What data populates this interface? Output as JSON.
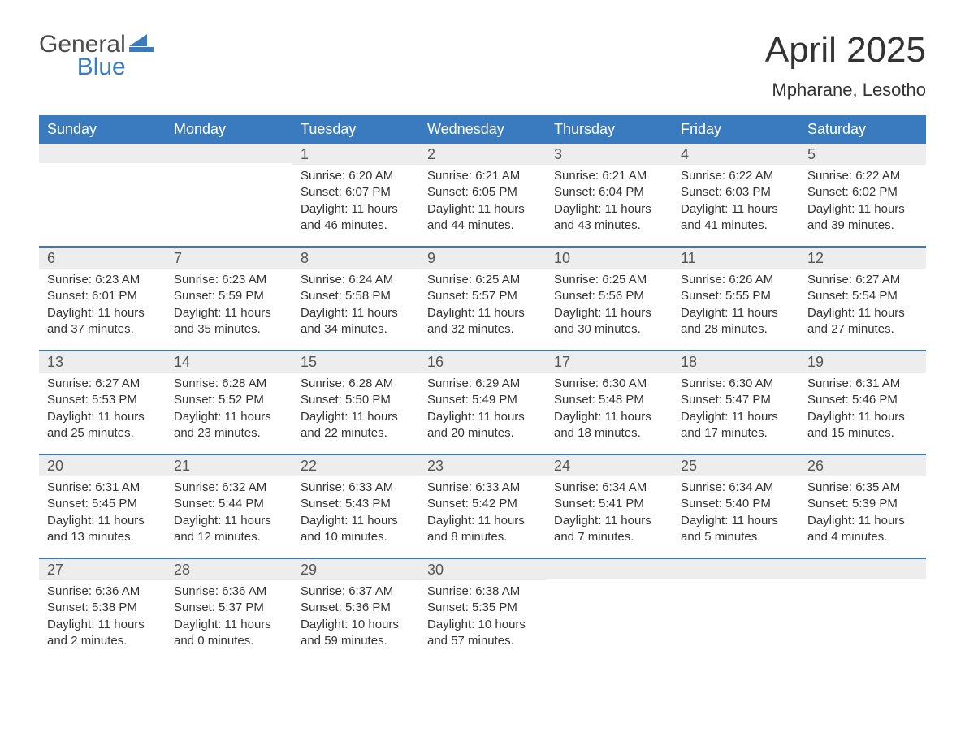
{
  "brand": {
    "text_top": "General",
    "text_bottom": "Blue",
    "mark_color": "#3a7bbf",
    "text_top_color": "#4c4c4c",
    "text_bottom_color": "#3a7bbf"
  },
  "title": "April 2025",
  "location": "Mpharane, Lesotho",
  "colors": {
    "header_bg": "#3a7bbf",
    "header_fg": "#ffffff",
    "daynum_bg": "#ededed",
    "daynum_fg": "#555555",
    "body_fg": "#333333",
    "week_border": "#3a7bbf",
    "page_bg": "#ffffff"
  },
  "typography": {
    "title_fontsize": 44,
    "location_fontsize": 22,
    "header_fontsize": 18,
    "daynum_fontsize": 18,
    "body_fontsize": 15
  },
  "day_names": [
    "Sunday",
    "Monday",
    "Tuesday",
    "Wednesday",
    "Thursday",
    "Friday",
    "Saturday"
  ],
  "weeks": [
    [
      {
        "n": "",
        "sunrise": "",
        "sunset": "",
        "day1": "",
        "day2": ""
      },
      {
        "n": "",
        "sunrise": "",
        "sunset": "",
        "day1": "",
        "day2": ""
      },
      {
        "n": "1",
        "sunrise": "Sunrise: 6:20 AM",
        "sunset": "Sunset: 6:07 PM",
        "day1": "Daylight: 11 hours",
        "day2": "and 46 minutes."
      },
      {
        "n": "2",
        "sunrise": "Sunrise: 6:21 AM",
        "sunset": "Sunset: 6:05 PM",
        "day1": "Daylight: 11 hours",
        "day2": "and 44 minutes."
      },
      {
        "n": "3",
        "sunrise": "Sunrise: 6:21 AM",
        "sunset": "Sunset: 6:04 PM",
        "day1": "Daylight: 11 hours",
        "day2": "and 43 minutes."
      },
      {
        "n": "4",
        "sunrise": "Sunrise: 6:22 AM",
        "sunset": "Sunset: 6:03 PM",
        "day1": "Daylight: 11 hours",
        "day2": "and 41 minutes."
      },
      {
        "n": "5",
        "sunrise": "Sunrise: 6:22 AM",
        "sunset": "Sunset: 6:02 PM",
        "day1": "Daylight: 11 hours",
        "day2": "and 39 minutes."
      }
    ],
    [
      {
        "n": "6",
        "sunrise": "Sunrise: 6:23 AM",
        "sunset": "Sunset: 6:01 PM",
        "day1": "Daylight: 11 hours",
        "day2": "and 37 minutes."
      },
      {
        "n": "7",
        "sunrise": "Sunrise: 6:23 AM",
        "sunset": "Sunset: 5:59 PM",
        "day1": "Daylight: 11 hours",
        "day2": "and 35 minutes."
      },
      {
        "n": "8",
        "sunrise": "Sunrise: 6:24 AM",
        "sunset": "Sunset: 5:58 PM",
        "day1": "Daylight: 11 hours",
        "day2": "and 34 minutes."
      },
      {
        "n": "9",
        "sunrise": "Sunrise: 6:25 AM",
        "sunset": "Sunset: 5:57 PM",
        "day1": "Daylight: 11 hours",
        "day2": "and 32 minutes."
      },
      {
        "n": "10",
        "sunrise": "Sunrise: 6:25 AM",
        "sunset": "Sunset: 5:56 PM",
        "day1": "Daylight: 11 hours",
        "day2": "and 30 minutes."
      },
      {
        "n": "11",
        "sunrise": "Sunrise: 6:26 AM",
        "sunset": "Sunset: 5:55 PM",
        "day1": "Daylight: 11 hours",
        "day2": "and 28 minutes."
      },
      {
        "n": "12",
        "sunrise": "Sunrise: 6:27 AM",
        "sunset": "Sunset: 5:54 PM",
        "day1": "Daylight: 11 hours",
        "day2": "and 27 minutes."
      }
    ],
    [
      {
        "n": "13",
        "sunrise": "Sunrise: 6:27 AM",
        "sunset": "Sunset: 5:53 PM",
        "day1": "Daylight: 11 hours",
        "day2": "and 25 minutes."
      },
      {
        "n": "14",
        "sunrise": "Sunrise: 6:28 AM",
        "sunset": "Sunset: 5:52 PM",
        "day1": "Daylight: 11 hours",
        "day2": "and 23 minutes."
      },
      {
        "n": "15",
        "sunrise": "Sunrise: 6:28 AM",
        "sunset": "Sunset: 5:50 PM",
        "day1": "Daylight: 11 hours",
        "day2": "and 22 minutes."
      },
      {
        "n": "16",
        "sunrise": "Sunrise: 6:29 AM",
        "sunset": "Sunset: 5:49 PM",
        "day1": "Daylight: 11 hours",
        "day2": "and 20 minutes."
      },
      {
        "n": "17",
        "sunrise": "Sunrise: 6:30 AM",
        "sunset": "Sunset: 5:48 PM",
        "day1": "Daylight: 11 hours",
        "day2": "and 18 minutes."
      },
      {
        "n": "18",
        "sunrise": "Sunrise: 6:30 AM",
        "sunset": "Sunset: 5:47 PM",
        "day1": "Daylight: 11 hours",
        "day2": "and 17 minutes."
      },
      {
        "n": "19",
        "sunrise": "Sunrise: 6:31 AM",
        "sunset": "Sunset: 5:46 PM",
        "day1": "Daylight: 11 hours",
        "day2": "and 15 minutes."
      }
    ],
    [
      {
        "n": "20",
        "sunrise": "Sunrise: 6:31 AM",
        "sunset": "Sunset: 5:45 PM",
        "day1": "Daylight: 11 hours",
        "day2": "and 13 minutes."
      },
      {
        "n": "21",
        "sunrise": "Sunrise: 6:32 AM",
        "sunset": "Sunset: 5:44 PM",
        "day1": "Daylight: 11 hours",
        "day2": "and 12 minutes."
      },
      {
        "n": "22",
        "sunrise": "Sunrise: 6:33 AM",
        "sunset": "Sunset: 5:43 PM",
        "day1": "Daylight: 11 hours",
        "day2": "and 10 minutes."
      },
      {
        "n": "23",
        "sunrise": "Sunrise: 6:33 AM",
        "sunset": "Sunset: 5:42 PM",
        "day1": "Daylight: 11 hours",
        "day2": "and 8 minutes."
      },
      {
        "n": "24",
        "sunrise": "Sunrise: 6:34 AM",
        "sunset": "Sunset: 5:41 PM",
        "day1": "Daylight: 11 hours",
        "day2": "and 7 minutes."
      },
      {
        "n": "25",
        "sunrise": "Sunrise: 6:34 AM",
        "sunset": "Sunset: 5:40 PM",
        "day1": "Daylight: 11 hours",
        "day2": "and 5 minutes."
      },
      {
        "n": "26",
        "sunrise": "Sunrise: 6:35 AM",
        "sunset": "Sunset: 5:39 PM",
        "day1": "Daylight: 11 hours",
        "day2": "and 4 minutes."
      }
    ],
    [
      {
        "n": "27",
        "sunrise": "Sunrise: 6:36 AM",
        "sunset": "Sunset: 5:38 PM",
        "day1": "Daylight: 11 hours",
        "day2": "and 2 minutes."
      },
      {
        "n": "28",
        "sunrise": "Sunrise: 6:36 AM",
        "sunset": "Sunset: 5:37 PM",
        "day1": "Daylight: 11 hours",
        "day2": "and 0 minutes."
      },
      {
        "n": "29",
        "sunrise": "Sunrise: 6:37 AM",
        "sunset": "Sunset: 5:36 PM",
        "day1": "Daylight: 10 hours",
        "day2": "and 59 minutes."
      },
      {
        "n": "30",
        "sunrise": "Sunrise: 6:38 AM",
        "sunset": "Sunset: 5:35 PM",
        "day1": "Daylight: 10 hours",
        "day2": "and 57 minutes."
      },
      {
        "n": "",
        "sunrise": "",
        "sunset": "",
        "day1": "",
        "day2": ""
      },
      {
        "n": "",
        "sunrise": "",
        "sunset": "",
        "day1": "",
        "day2": ""
      },
      {
        "n": "",
        "sunrise": "",
        "sunset": "",
        "day1": "",
        "day2": ""
      }
    ]
  ]
}
